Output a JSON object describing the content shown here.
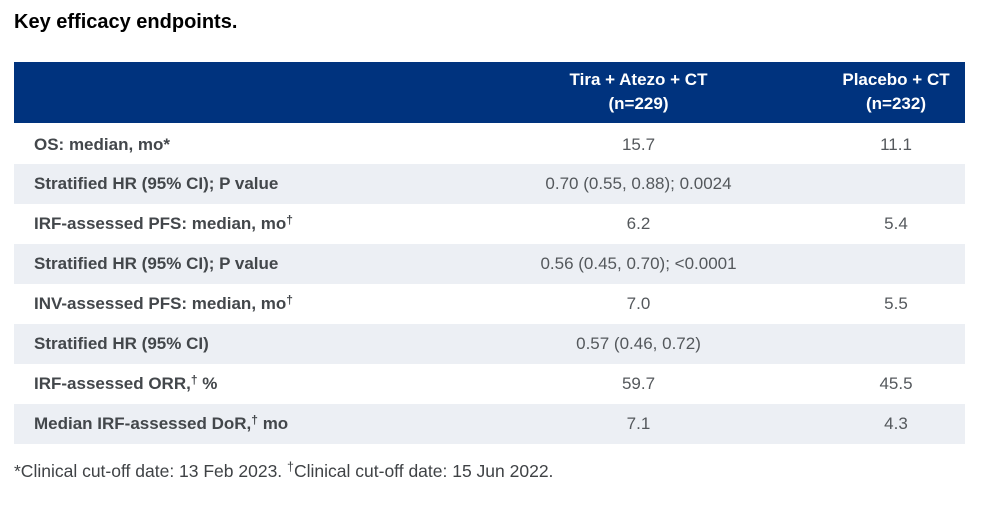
{
  "title": "Key efficacy endpoints.",
  "table": {
    "columns": [
      {
        "line1": "Tira + Atezo + CT",
        "line2": "(n=229)"
      },
      {
        "line1": "Placebo + CT",
        "line2": "(n=232)"
      }
    ],
    "rows": [
      {
        "label": {
          "pre": "OS: median, mo*",
          "sup": "",
          "post": ""
        },
        "values": [
          "15.7",
          "11.1"
        ]
      },
      {
        "label": {
          "pre": "Stratified HR (95% CI); P value",
          "sup": "",
          "post": ""
        },
        "values": [
          "0.70 (0.55, 0.88); 0.0024",
          ""
        ]
      },
      {
        "label": {
          "pre": "IRF-assessed PFS: median, mo",
          "sup": "†",
          "post": ""
        },
        "values": [
          "6.2",
          "5.4"
        ]
      },
      {
        "label": {
          "pre": "Stratified HR (95% CI); P value",
          "sup": "",
          "post": ""
        },
        "values": [
          "0.56 (0.45, 0.70); <0.0001",
          ""
        ]
      },
      {
        "label": {
          "pre": "INV-assessed PFS: median, mo",
          "sup": "†",
          "post": ""
        },
        "values": [
          "7.0",
          "5.5"
        ]
      },
      {
        "label": {
          "pre": "Stratified HR (95% CI)",
          "sup": "",
          "post": ""
        },
        "values": [
          "0.57 (0.46, 0.72)",
          ""
        ]
      },
      {
        "label": {
          "pre": "IRF-assessed ORR,",
          "sup": "†",
          "post": " %"
        },
        "values": [
          "59.7",
          "45.5"
        ]
      },
      {
        "label": {
          "pre": "Median IRF-assessed DoR,",
          "sup": "†",
          "post": " mo"
        },
        "values": [
          "7.1",
          "4.3"
        ]
      }
    ]
  },
  "footnote": {
    "part1": "*Clinical cut-off date: 13 Feb 2023. ",
    "sup": "†",
    "part2": "Clinical cut-off date: 15 Jun 2022."
  },
  "colors": {
    "header_bg": "#00337E",
    "header_text": "#FFFFFF",
    "shaded_row_bg": "#ECEFF4",
    "label_text": "#43474B",
    "value_text": "#54585C"
  }
}
